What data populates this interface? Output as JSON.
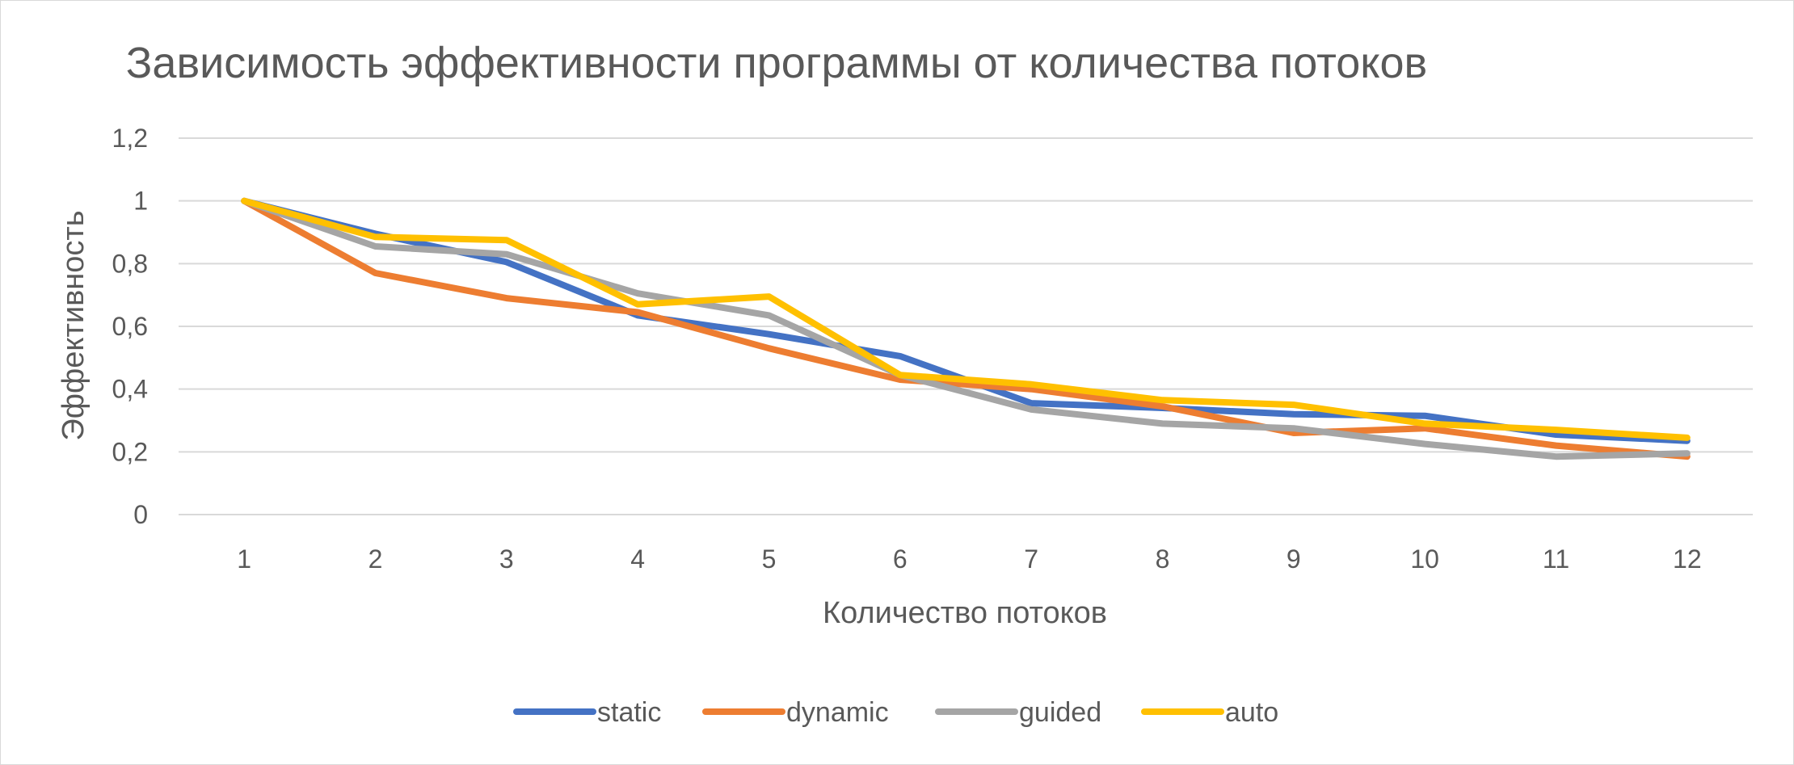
{
  "chart_data": {
    "type": "line",
    "title": "Зависимость эффективности программы от количества потоков",
    "xlabel": "Количество потоков",
    "ylabel": "Эффективность",
    "categories": [
      "1",
      "2",
      "3",
      "4",
      "5",
      "6",
      "7",
      "8",
      "9",
      "10",
      "11",
      "12"
    ],
    "y_ticks": [
      "0",
      "0,2",
      "0,4",
      "0,6",
      "0,8",
      "1",
      "1,2"
    ],
    "ylim": [
      0,
      1.2
    ],
    "grid": true,
    "legend_position": "bottom",
    "series": [
      {
        "name": "static",
        "color": "#4472C4",
        "values": [
          1.0,
          0.895,
          0.805,
          0.635,
          0.575,
          0.505,
          0.355,
          0.34,
          0.32,
          0.315,
          0.255,
          0.235
        ]
      },
      {
        "name": "dynamic",
        "color": "#ED7D31",
        "values": [
          1.0,
          0.77,
          0.69,
          0.645,
          0.53,
          0.43,
          0.4,
          0.345,
          0.26,
          0.275,
          0.22,
          0.185
        ]
      },
      {
        "name": "guided",
        "color": "#A5A5A5",
        "values": [
          1.0,
          0.855,
          0.83,
          0.705,
          0.635,
          0.445,
          0.335,
          0.29,
          0.275,
          0.225,
          0.185,
          0.195
        ]
      },
      {
        "name": "auto",
        "color": "#FFC000",
        "values": [
          1.0,
          0.885,
          0.875,
          0.67,
          0.695,
          0.445,
          0.415,
          0.365,
          0.35,
          0.29,
          0.27,
          0.245
        ]
      }
    ]
  }
}
